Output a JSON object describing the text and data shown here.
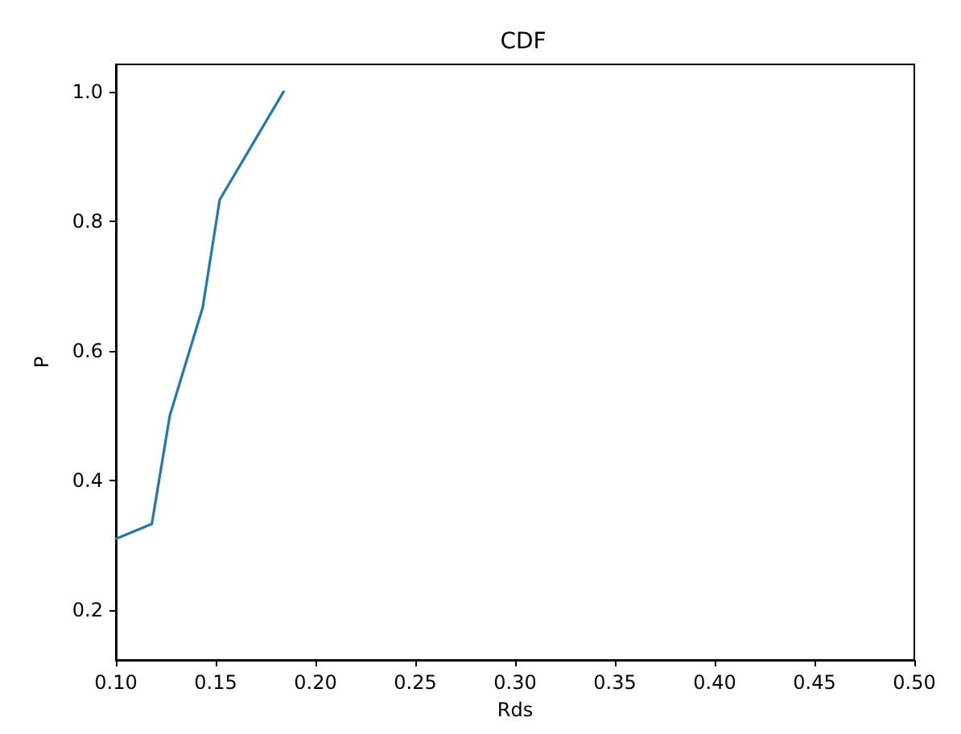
{
  "chart_data": {
    "type": "line",
    "title": "CDF",
    "xlabel": "Rds",
    "ylabel": "P",
    "x": [
      0.1,
      0.118,
      0.127,
      0.1435,
      0.152,
      0.184
    ],
    "series": [
      {
        "color": "#1f77b4",
        "values": [
          0.31,
          0.333,
          0.5,
          0.667,
          0.833,
          1.0
        ]
      }
    ],
    "xlim": [
      0.1,
      0.5
    ],
    "xticks": [
      {
        "value": 0.1,
        "label": "0.10"
      },
      0.15,
      {
        "value": 0.2,
        "label": "0.20"
      },
      0.25,
      {
        "value": 0.3,
        "label": "0.30"
      },
      0.35,
      {
        "value": 0.4,
        "label": "0.40"
      },
      0.45,
      {
        "value": 0.5,
        "label": "0.50"
      }
    ],
    "ylim": [
      0.123,
      1.042
    ],
    "yticks": [
      0.2,
      0.4,
      0.6,
      0.8,
      {
        "value": 1,
        "label": "1.0"
      }
    ],
    "grid": false,
    "marker": "none",
    "line_style": "solid"
  }
}
